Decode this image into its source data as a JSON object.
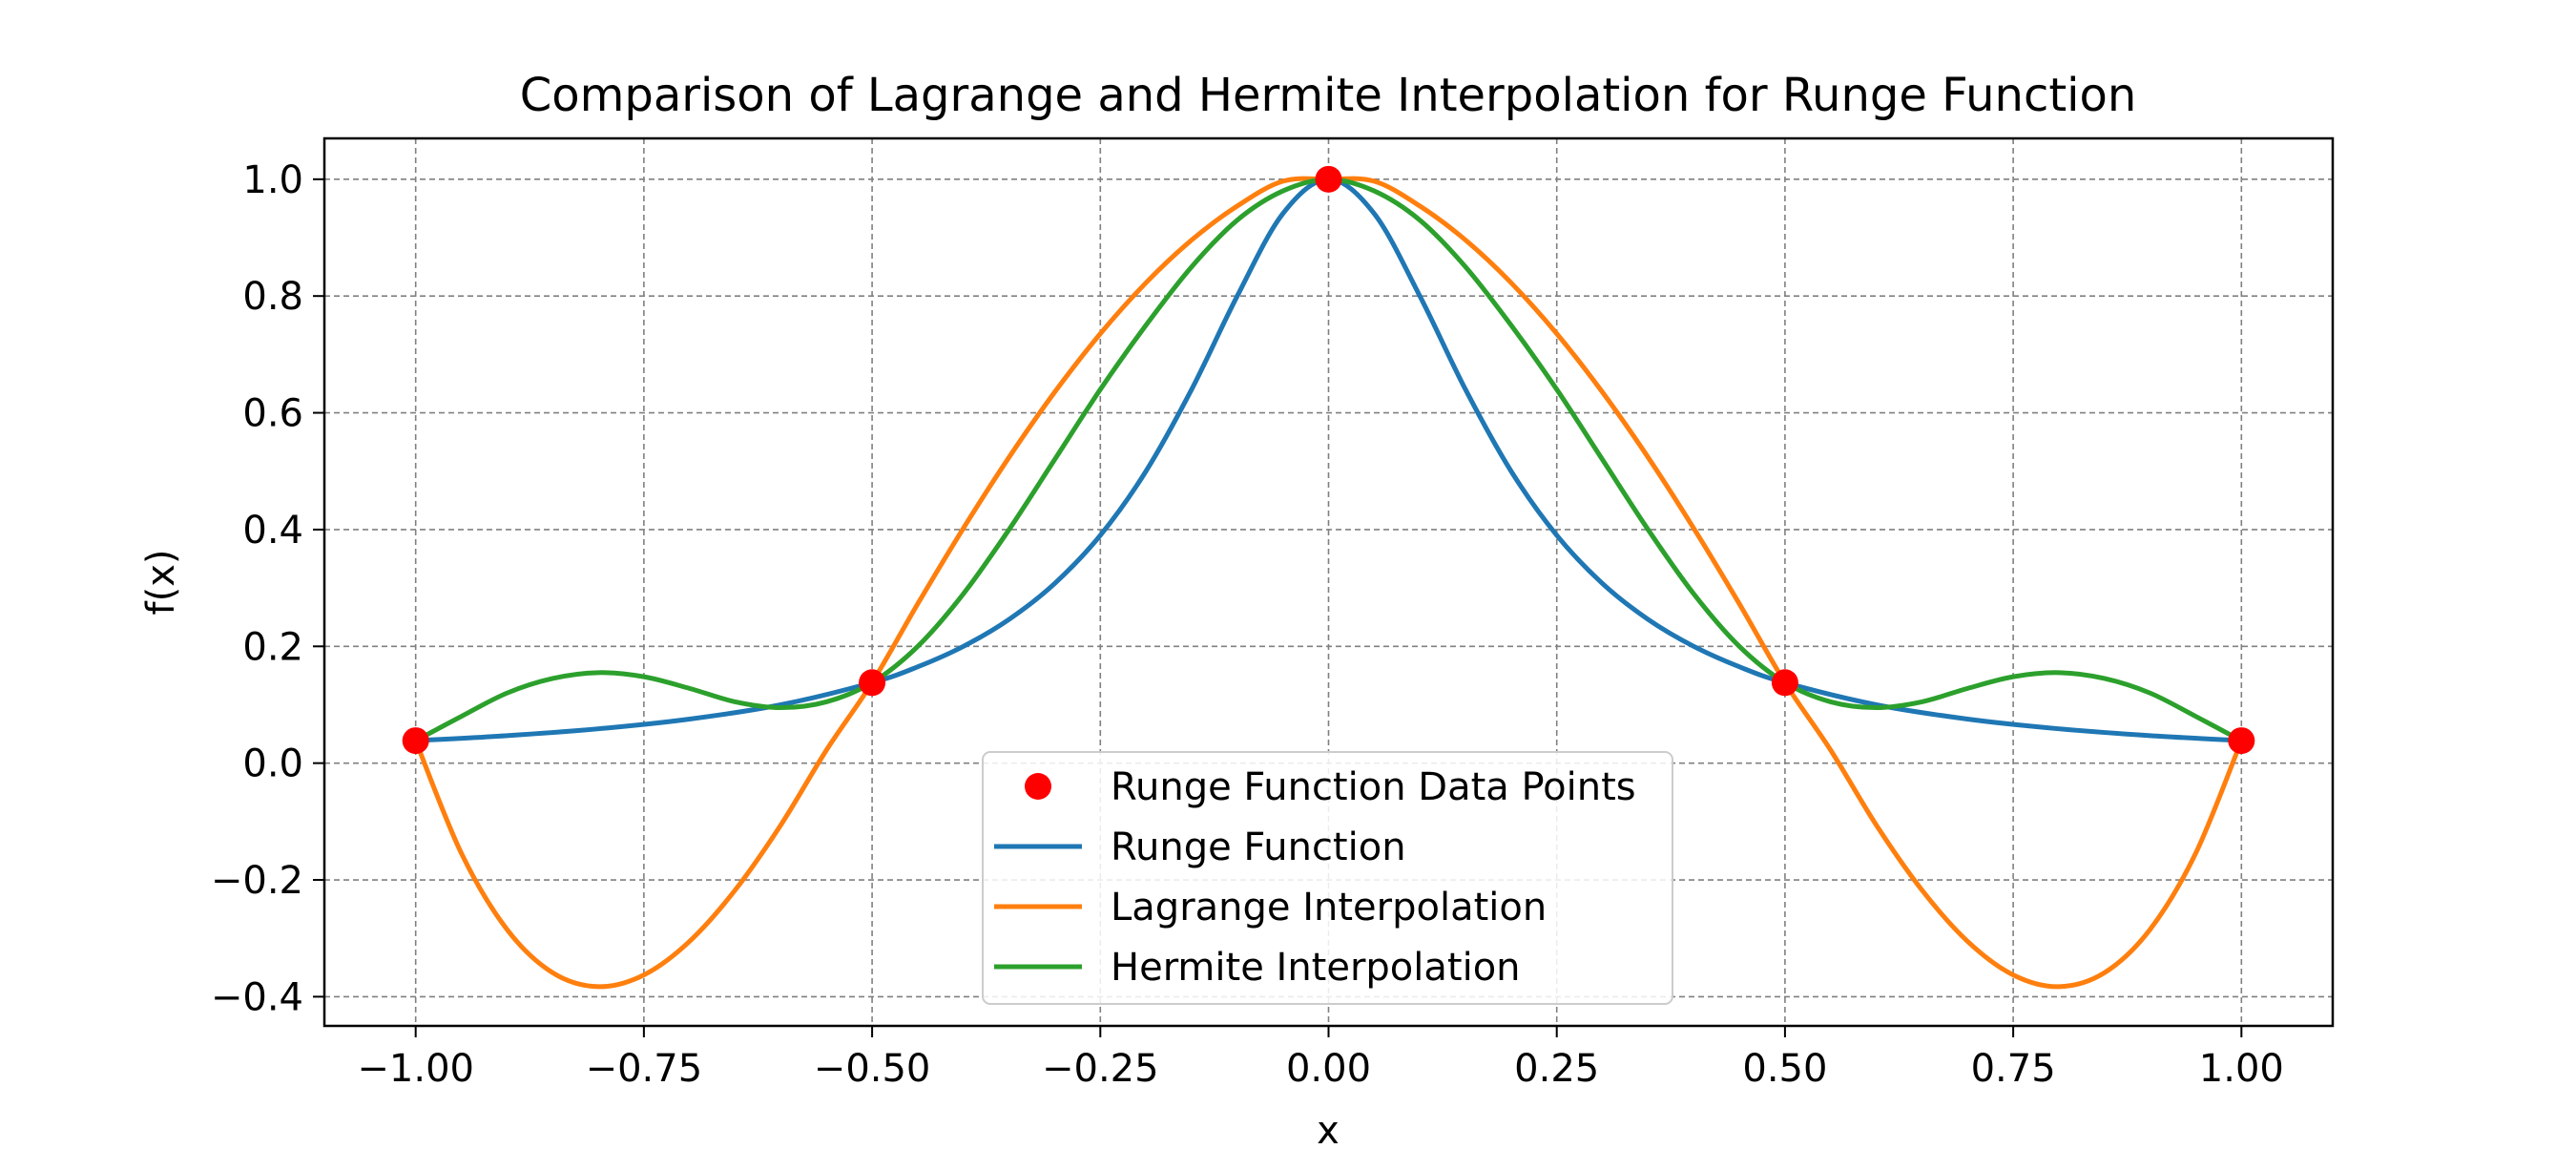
{
  "chart_data": {
    "type": "line",
    "title": "Comparison of Lagrange and Hermite Interpolation for Runge Function",
    "xlabel": "x",
    "ylabel": "f(x)",
    "xlim": [
      -1.1,
      1.1
    ],
    "ylim": [
      -0.45,
      1.07
    ],
    "x_ticks": [
      -1.0,
      -0.75,
      -0.5,
      -0.25,
      0.0,
      0.25,
      0.5,
      0.75,
      1.0
    ],
    "x_tick_labels": [
      "−1.00",
      "−0.75",
      "−0.50",
      "−0.25",
      "0.00",
      "0.25",
      "0.50",
      "0.75",
      "1.00"
    ],
    "y_ticks": [
      -0.4,
      -0.2,
      0.0,
      0.2,
      0.4,
      0.6,
      0.8,
      1.0
    ],
    "y_tick_labels": [
      "−0.4",
      "−0.2",
      "0.0",
      "0.2",
      "0.4",
      "0.6",
      "0.8",
      "1.0"
    ],
    "grid": true,
    "legend_position": "lower center",
    "series": [
      {
        "name": "Runge Function Data Points",
        "kind": "scatter",
        "color": "#ff0000",
        "x": [
          -1.0,
          -0.5,
          0.0,
          0.5,
          1.0
        ],
        "y": [
          0.0385,
          0.1379,
          1.0,
          0.1379,
          0.0385
        ]
      },
      {
        "name": "Runge Function",
        "kind": "line",
        "color": "#1f77b4",
        "x": [
          -1.0,
          -0.9,
          -0.8,
          -0.7,
          -0.6,
          -0.5,
          -0.45,
          -0.4,
          -0.35,
          -0.3,
          -0.25,
          -0.2,
          -0.15,
          -0.1,
          -0.05,
          0.0,
          0.05,
          0.1,
          0.15,
          0.2,
          0.25,
          0.3,
          0.35,
          0.4,
          0.45,
          0.5,
          0.6,
          0.7,
          0.8,
          0.9,
          1.0
        ],
        "y": [
          0.0385,
          0.0471,
          0.0588,
          0.0755,
          0.1,
          0.1379,
          0.165,
          0.2,
          0.2462,
          0.3077,
          0.3902,
          0.5,
          0.64,
          0.8,
          0.9412,
          1.0,
          0.9412,
          0.8,
          0.64,
          0.5,
          0.3902,
          0.3077,
          0.2462,
          0.2,
          0.165,
          0.1379,
          0.1,
          0.0755,
          0.0588,
          0.0471,
          0.0385
        ]
      },
      {
        "name": "Lagrange Interpolation",
        "kind": "line",
        "color": "#ff7f0e",
        "x": [
          -1.0,
          -0.95,
          -0.9,
          -0.85,
          -0.8,
          -0.75,
          -0.7,
          -0.65,
          -0.6,
          -0.55,
          -0.5,
          -0.45,
          -0.4,
          -0.35,
          -0.3,
          -0.25,
          -0.2,
          -0.15,
          -0.1,
          -0.05,
          0.0,
          0.05,
          0.1,
          0.15,
          0.2,
          0.25,
          0.3,
          0.35,
          0.4,
          0.45,
          0.5,
          0.55,
          0.6,
          0.65,
          0.7,
          0.75,
          0.8,
          0.85,
          0.9,
          0.95,
          1.0
        ],
        "y": [
          0.0385,
          -0.1541,
          -0.2847,
          -0.3589,
          -0.3828,
          -0.3627,
          -0.3052,
          -0.2173,
          -0.1059,
          0.0224,
          0.1379,
          0.2729,
          0.4023,
          0.5238,
          0.6354,
          0.7355,
          0.8227,
          0.8959,
          0.9541,
          0.9966,
          1.0,
          0.9966,
          0.9541,
          0.8959,
          0.8227,
          0.7355,
          0.6354,
          0.5238,
          0.4023,
          0.2729,
          0.1379,
          0.0224,
          -0.1059,
          -0.2173,
          -0.3052,
          -0.3627,
          -0.3828,
          -0.3589,
          -0.2847,
          -0.1541,
          0.0385
        ]
      },
      {
        "name": "Hermite Interpolation",
        "kind": "line",
        "color": "#2ca02c",
        "x": [
          -1.0,
          -0.95,
          -0.9,
          -0.85,
          -0.8,
          -0.75,
          -0.7,
          -0.65,
          -0.6,
          -0.55,
          -0.5,
          -0.45,
          -0.4,
          -0.35,
          -0.3,
          -0.25,
          -0.2,
          -0.15,
          -0.1,
          -0.05,
          0.0,
          0.05,
          0.1,
          0.15,
          0.2,
          0.25,
          0.3,
          0.35,
          0.4,
          0.45,
          0.5,
          0.55,
          0.6,
          0.65,
          0.7,
          0.75,
          0.8,
          0.85,
          0.9,
          0.95,
          1.0
        ],
        "y": [
          0.0385,
          0.08,
          0.12,
          0.145,
          0.155,
          0.148,
          0.128,
          0.105,
          0.095,
          0.105,
          0.1379,
          0.2,
          0.29,
          0.4,
          0.52,
          0.64,
          0.75,
          0.85,
          0.93,
          0.98,
          1.0,
          0.98,
          0.93,
          0.85,
          0.75,
          0.64,
          0.52,
          0.4,
          0.29,
          0.2,
          0.1379,
          0.105,
          0.095,
          0.105,
          0.128,
          0.148,
          0.155,
          0.145,
          0.12,
          0.08,
          0.0385
        ]
      }
    ]
  }
}
